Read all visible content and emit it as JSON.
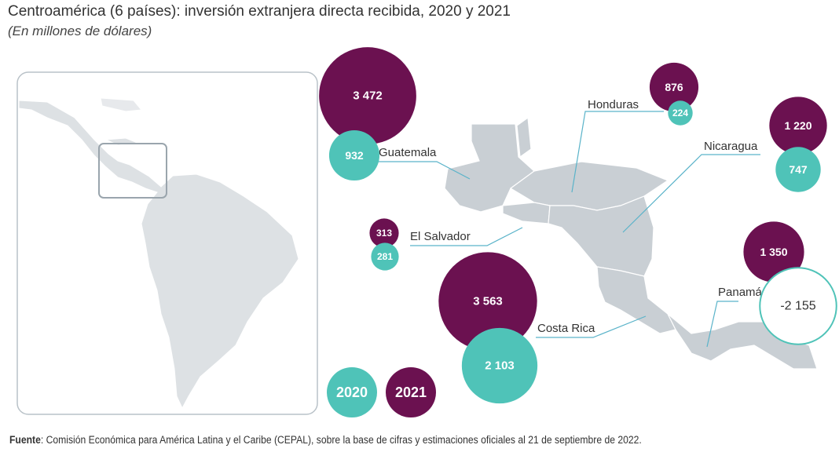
{
  "title": "Centroamérica (6 países): inversión extranjera directa recibida, 2020 y 2021",
  "subtitle": "(En millones de dólares)",
  "source": {
    "label": "Fuente",
    "text": ": Comisión Económica para América Latina y el Caribe (CEPAL), sobre la base de cifras y estimaciones oficiales al 21 de septiembre de 2022."
  },
  "colors": {
    "y2020": "#4fc3b8",
    "y2021": "#6b1150",
    "map": "#c9cfd4",
    "inset_map": "#dde1e4"
  },
  "legend": [
    "2020",
    "2021"
  ],
  "chart_data": {
    "type": "bubble-map",
    "unit": "millones de dólares",
    "series": [
      "2020",
      "2021"
    ],
    "countries": [
      {
        "name": "Guatemala",
        "v2020": 932,
        "l2020": "932",
        "v2021": 3472,
        "l2021": "3 472"
      },
      {
        "name": "Honduras",
        "v2020": 224,
        "l2020": "224",
        "v2021": 876,
        "l2021": "876"
      },
      {
        "name": "Nicaragua",
        "v2020": 747,
        "l2020": "747",
        "v2021": 1220,
        "l2021": "1 220"
      },
      {
        "name": "El Salvador",
        "v2020": 281,
        "l2020": "281",
        "v2021": 313,
        "l2021": "313"
      },
      {
        "name": "Costa Rica",
        "v2020": 2103,
        "l2020": "2 103",
        "v2021": 3563,
        "l2021": "3 563"
      },
      {
        "name": "Panamá",
        "v2020": -2155,
        "l2020": "-2 155",
        "v2021": 1350,
        "l2021": "1 350"
      }
    ]
  }
}
